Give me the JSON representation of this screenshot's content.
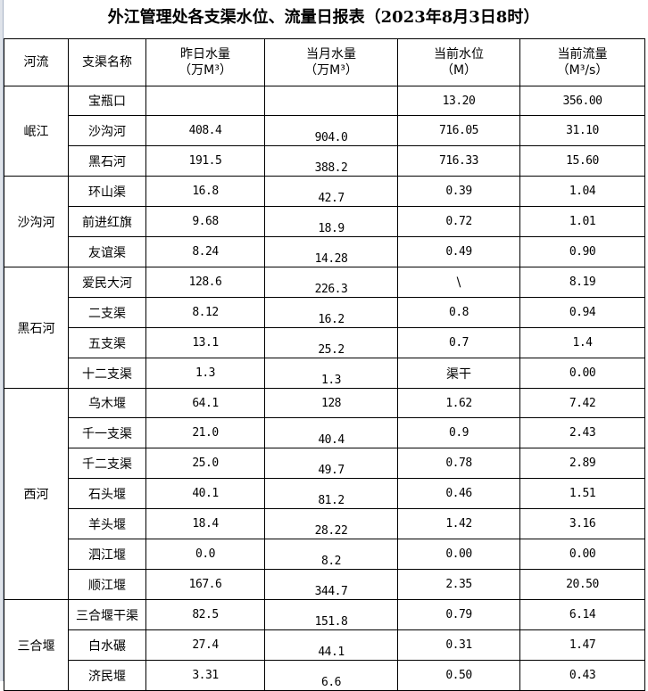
{
  "title": "外江管理处各支渠水位、流量日报表（2023年8月3日8时）",
  "headers": [
    {
      "l1": "河流",
      "l2": ""
    },
    {
      "l1": "支渠名称",
      "l2": ""
    },
    {
      "l1": "昨日水量",
      "l2": "（万M³）"
    },
    {
      "l1": "当月水量",
      "l2": "（万M³）"
    },
    {
      "l1": "当前水位",
      "l2": "（M）"
    },
    {
      "l1": "当前流量",
      "l2": "（M³/s）"
    }
  ],
  "groups": [
    {
      "river": "岷江",
      "rows": [
        {
          "name": "宝瓶口",
          "yesterday": "",
          "month": "",
          "level": "13.20",
          "flow": "356.00"
        },
        {
          "name": "沙沟河",
          "yesterday": "408.4",
          "month": "904.0",
          "level": "716.05",
          "flow": "31.10"
        },
        {
          "name": "黑石河",
          "yesterday": "191.5",
          "month": "388.2",
          "level": "716.33",
          "flow": "15.60"
        }
      ]
    },
    {
      "river": "沙沟河",
      "rows": [
        {
          "name": "环山渠",
          "yesterday": "16.8",
          "month": "42.7",
          "level": "0.39",
          "flow": "1.04"
        },
        {
          "name": "前进红旗",
          "yesterday": "9.68",
          "month": "18.9",
          "level": "0.72",
          "flow": "1.01"
        },
        {
          "name": "友谊渠",
          "yesterday": "8.24",
          "month": "14.28",
          "level": "0.49",
          "flow": "0.90"
        }
      ]
    },
    {
      "river": "黑石河",
      "rows": [
        {
          "name": "爱民大河",
          "yesterday": "128.6",
          "month": "226.3",
          "level": "\\",
          "flow": "8.19"
        },
        {
          "name": "二支渠",
          "yesterday": "8.12",
          "month": "16.2",
          "level": "0.8",
          "flow": "0.94"
        },
        {
          "name": "五支渠",
          "yesterday": "13.1",
          "month": "25.2",
          "level": "0.7",
          "flow": "1.4"
        },
        {
          "name": "十二支渠",
          "yesterday": "1.3",
          "month": "1.3",
          "level": "渠干",
          "flow": "0.00"
        }
      ]
    },
    {
      "river": "西河",
      "rows": [
        {
          "name": "乌木堰",
          "yesterday": "64.1",
          "month": "128",
          "level": "1.62",
          "flow": "7.42"
        },
        {
          "name": "千一支渠",
          "yesterday": "21.0",
          "month": "40.4",
          "level": "0.9",
          "flow": "2.43"
        },
        {
          "name": "千二支渠",
          "yesterday": "25.0",
          "month": "49.7",
          "level": "0.78",
          "flow": "2.89"
        },
        {
          "name": "石头堰",
          "yesterday": "40.1",
          "month": "81.2",
          "level": "0.46",
          "flow": "1.51"
        },
        {
          "name": "羊头堰",
          "yesterday": "18.4",
          "month": "28.22",
          "level": "1.42",
          "flow": "3.16"
        },
        {
          "name": "泗江堰",
          "yesterday": "0.0",
          "month": "8.2",
          "level": "0.00",
          "flow": "0.00"
        },
        {
          "name": "顺江堰",
          "yesterday": "167.6",
          "month": "344.7",
          "level": "2.35",
          "flow": "20.50"
        }
      ]
    },
    {
      "river": "三合堰",
      "rows": [
        {
          "name": "三合堰干渠",
          "yesterday": "82.5",
          "month": "151.8",
          "level": "0.79",
          "flow": "6.14"
        },
        {
          "name": "白水碾",
          "yesterday": "27.4",
          "month": "44.1",
          "level": "0.31",
          "flow": "1.47"
        },
        {
          "name": "济民堰",
          "yesterday": "3.31",
          "month": "6.6",
          "level": "0.50",
          "flow": "0.43"
        }
      ]
    }
  ]
}
